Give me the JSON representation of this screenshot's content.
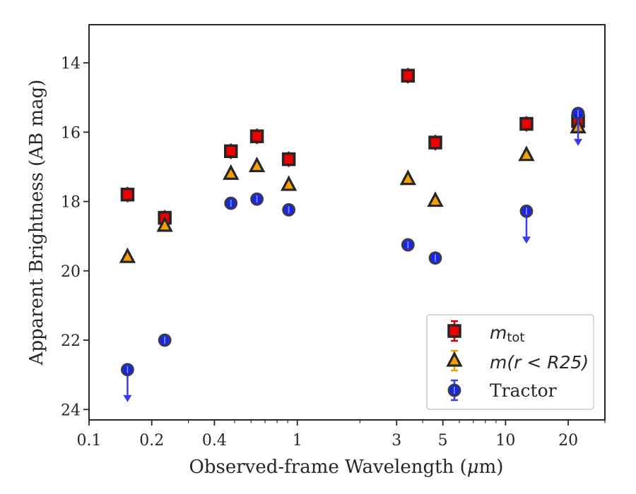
{
  "chart_data": {
    "type": "scatter",
    "xlabel_prefix": "Observed-frame Wavelength (",
    "xlabel_mu": "μ",
    "xlabel_suffix": "m)",
    "ylabel": "Apparent Brightness (AB mag)",
    "x_scale": "log",
    "y_inverted": true,
    "xlim": [
      0.1,
      30
    ],
    "ylim": [
      24.3,
      12.9
    ],
    "x_ticks": [
      {
        "value": 0.1,
        "label": "0.1"
      },
      {
        "value": 0.2,
        "label": "0.2"
      },
      {
        "value": 0.4,
        "label": "0.4"
      },
      {
        "value": 1,
        "label": "1"
      },
      {
        "value": 3,
        "label": "3"
      },
      {
        "value": 5,
        "label": "5"
      },
      {
        "value": 10,
        "label": "10"
      },
      {
        "value": 20,
        "label": "20"
      }
    ],
    "y_ticks": [
      {
        "value": 14,
        "label": "14"
      },
      {
        "value": 16,
        "label": "16"
      },
      {
        "value": 18,
        "label": "18"
      },
      {
        "value": 20,
        "label": "20"
      },
      {
        "value": 22,
        "label": "22"
      },
      {
        "value": 24,
        "label": "24"
      }
    ],
    "grid": false,
    "legend_position": "lower-right",
    "legend": [
      {
        "math": "m",
        "sub": "tot",
        "rest": ""
      },
      {
        "math": "m",
        "sub": "",
        "rest": "(r < R25)"
      },
      {
        "math": "",
        "sub": "",
        "rest": "Tractor"
      }
    ],
    "series": [
      {
        "marker": "square",
        "color": "#ee0000",
        "edge": "#262626",
        "errcolor": "#cc0000",
        "points": [
          {
            "x": 0.153,
            "y": 17.8
          },
          {
            "x": 0.231,
            "y": 18.47
          },
          {
            "x": 0.48,
            "y": 16.55
          },
          {
            "x": 0.64,
            "y": 16.12
          },
          {
            "x": 0.91,
            "y": 16.78
          },
          {
            "x": 3.4,
            "y": 14.37
          },
          {
            "x": 4.6,
            "y": 16.3
          },
          {
            "x": 12.6,
            "y": 15.76
          },
          {
            "x": 22.3,
            "y": 15.68
          }
        ]
      },
      {
        "marker": "triangle",
        "color": "#f5a000",
        "edge": "#262626",
        "errcolor": "#f5a000",
        "points": [
          {
            "x": 0.153,
            "y": 19.6
          },
          {
            "x": 0.231,
            "y": 18.7
          },
          {
            "x": 0.48,
            "y": 17.2
          },
          {
            "x": 0.64,
            "y": 16.98
          },
          {
            "x": 0.91,
            "y": 17.52
          },
          {
            "x": 3.4,
            "y": 17.35
          },
          {
            "x": 4.6,
            "y": 17.98
          },
          {
            "x": 12.6,
            "y": 16.66
          },
          {
            "x": 22.3,
            "y": 15.86
          }
        ]
      },
      {
        "marker": "circle",
        "color": "#0a1aee",
        "edge": "#3a3a4a",
        "errcolor": "#3a3aee",
        "points": [
          {
            "x": 0.153,
            "y": 22.85,
            "upper_limit": true
          },
          {
            "x": 0.231,
            "y": 22.0
          },
          {
            "x": 0.48,
            "y": 18.05
          },
          {
            "x": 0.64,
            "y": 17.93
          },
          {
            "x": 0.91,
            "y": 18.24
          },
          {
            "x": 3.4,
            "y": 19.25
          },
          {
            "x": 4.6,
            "y": 19.63
          },
          {
            "x": 12.6,
            "y": 18.28,
            "upper_limit": true
          },
          {
            "x": 22.3,
            "y": 15.46,
            "upper_limit": true
          }
        ]
      }
    ]
  }
}
